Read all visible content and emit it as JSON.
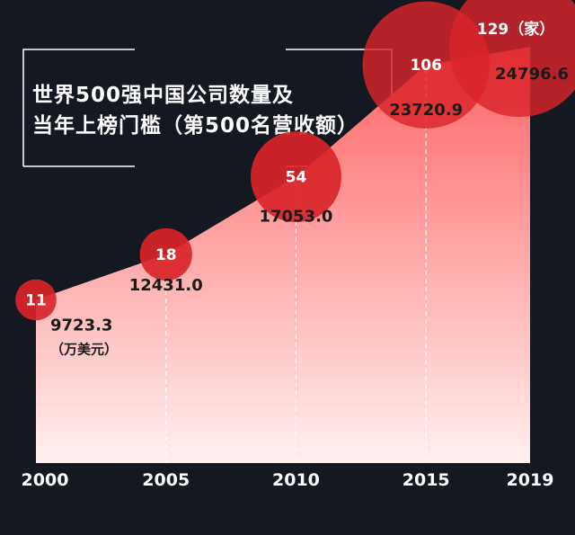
{
  "title_lines": [
    "世界500强中国公司数量及",
    "当年上榜门槛（第500名营收额）"
  ],
  "colors": {
    "background": "#141820",
    "bubble": "#d9252a",
    "area_top": "#ff6b6b",
    "area_bottom": "#ffe8e8",
    "text_light": "#ffffff",
    "text_dark": "#1a1a1a"
  },
  "chart_data": {
    "type": "area",
    "title": "世界500强中国公司数量及当年上榜门槛（第500名营收额）",
    "x": [
      "2000",
      "2005",
      "2010",
      "2015",
      "2019"
    ],
    "series": [
      {
        "name": "",
        "values": [
          11,
          18,
          54,
          106,
          129
        ],
        "display_labels": [
          "11",
          "18",
          "54",
          "106",
          "129（家）"
        ]
      },
      {
        "name": "",
        "values": [
          9723.3,
          12431.0,
          17053.0,
          23720.9,
          24796.6
        ],
        "display_labels": [
          "9723.3",
          "12431.0",
          "17053.0",
          "23720.9",
          "24796.6"
        ]
      }
    ],
    "unit_note": "（万美元）",
    "ylim": [
      0,
      30000
    ]
  }
}
